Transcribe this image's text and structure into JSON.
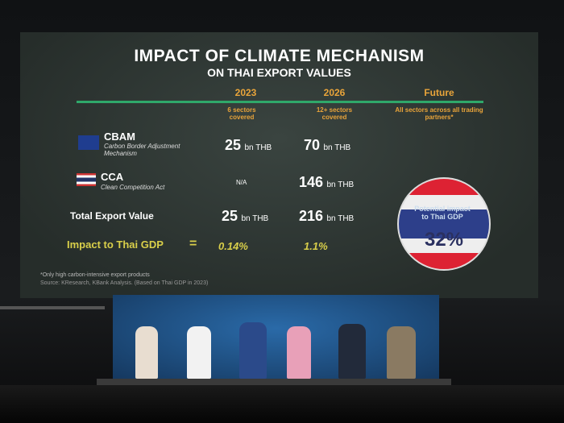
{
  "slide": {
    "title": "IMPACT OF CLIMATE MECHANISM",
    "subtitle": "ON THAI EXPORT VALUES",
    "columns": [
      {
        "year": "2023",
        "note": "6 sectors covered"
      },
      {
        "year": "2026",
        "note": "12+ sectors covered"
      },
      {
        "year": "Future",
        "note": "All sectors across all trading partners*"
      }
    ],
    "rows": [
      {
        "label": "CBAM",
        "desc": "Carbon Border Adjustment Mechanism",
        "v2023": "25",
        "u2023": "bn THB",
        "v2026": "70",
        "u2026": "bn THB"
      },
      {
        "label": "CCA",
        "desc": "Clean Competition Act",
        "v2023": "N/A",
        "v2026": "146",
        "u2026": "bn THB"
      },
      {
        "label": "Total Export Value",
        "v2023": "25",
        "u2023": "bn THB",
        "v2026": "216",
        "u2026": "bn THB"
      },
      {
        "label": "Impact to Thai GDP",
        "eq": "=",
        "v2023": "0.14%",
        "v2026": "1.1%"
      }
    ],
    "badge": {
      "text": "Potential impact to Thai GDP",
      "value": "32%"
    },
    "footnote": "*Only high carbon-intensive export products",
    "source": "Source: KResearch, KBank Analysis. (Based on Thai GDP in 2023)"
  }
}
